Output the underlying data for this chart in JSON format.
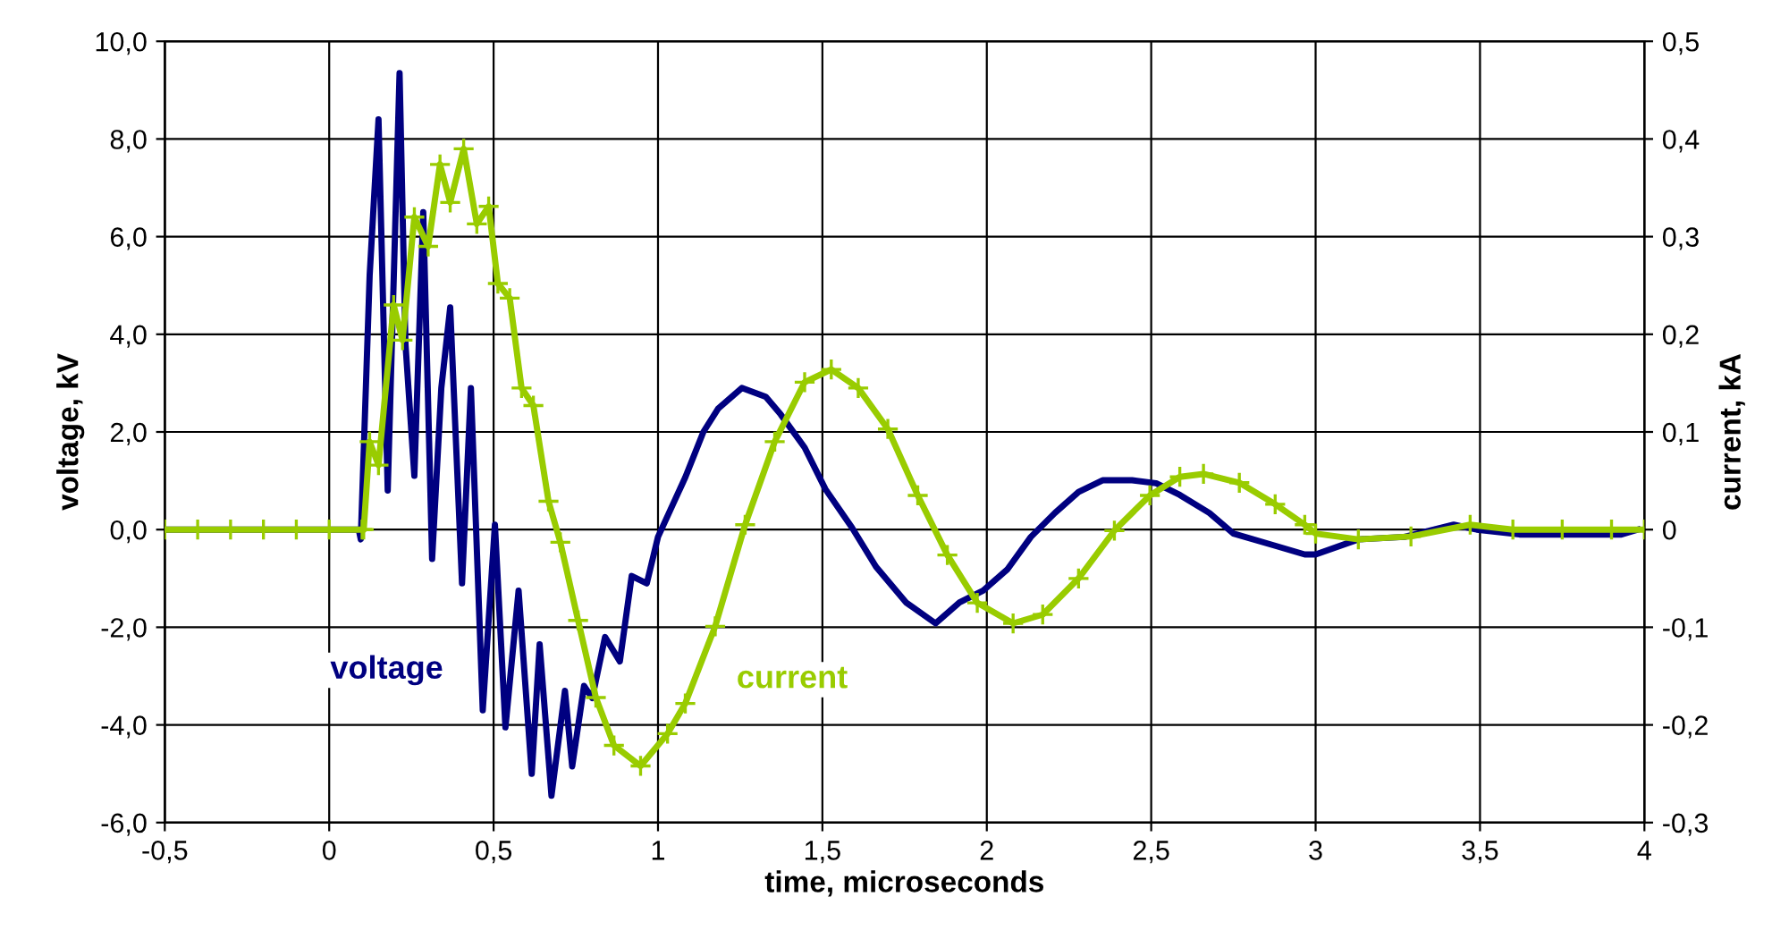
{
  "chart_data": {
    "type": "line",
    "xlabel": "time, microseconds",
    "ylabel": "voltage, kV",
    "y2label": "current, kA",
    "xlim": [
      -0.5,
      4
    ],
    "ylim": [
      -6,
      10
    ],
    "y2lim": [
      -0.3,
      0.5
    ],
    "xticks": [
      {
        "value": -0.5,
        "label": "-0,5"
      },
      0,
      {
        "value": 0.5,
        "label": "0,5"
      },
      1,
      {
        "value": 1.5,
        "label": "1,5"
      },
      2,
      {
        "value": 2.5,
        "label": "2,5"
      },
      3,
      {
        "value": 3.5,
        "label": "3,5"
      },
      4
    ],
    "yticks": [
      {
        "value": -6,
        "label": "-6,0"
      },
      {
        "value": -4,
        "label": "-4,0"
      },
      {
        "value": -2,
        "label": "-2,0"
      },
      {
        "value": 0,
        "label": "0,0"
      },
      {
        "value": 2,
        "label": "2,0"
      },
      {
        "value": 4,
        "label": "4,0"
      },
      {
        "value": 6,
        "label": "6,0"
      },
      {
        "value": 8,
        "label": "8,0"
      },
      {
        "value": 10,
        "label": "10,0"
      }
    ],
    "y2ticks": [
      {
        "value": -0.3,
        "label": "-0,3"
      },
      {
        "value": -0.2,
        "label": "-0,2"
      },
      {
        "value": -0.1,
        "label": "-0,1"
      },
      0,
      {
        "value": 0.1,
        "label": "0,1"
      },
      {
        "value": 0.2,
        "label": "0,2"
      },
      {
        "value": 0.3,
        "label": "0,3"
      },
      {
        "value": 0.4,
        "label": "0,4"
      },
      {
        "value": 0.5,
        "label": "0,5"
      }
    ],
    "grid": true,
    "legend": false,
    "series": [
      {
        "name": "voltage",
        "color": "#000080",
        "marker": "none",
        "x": [
          -0.5,
          0.09,
          0.096,
          0.123,
          0.15,
          0.178,
          0.214,
          0.232,
          0.259,
          0.286,
          0.313,
          0.341,
          0.368,
          0.404,
          0.431,
          0.467,
          0.504,
          0.536,
          0.576,
          0.616,
          0.64,
          0.676,
          0.717,
          0.739,
          0.775,
          0.8,
          0.839,
          0.884,
          0.92,
          0.966,
          1.0,
          1.083,
          1.138,
          1.183,
          1.255,
          1.328,
          1.373,
          1.446,
          1.509,
          1.59,
          1.663,
          1.754,
          1.844,
          1.917,
          1.989,
          2.062,
          2.134,
          2.207,
          2.279,
          2.352,
          2.442,
          2.515,
          2.587,
          2.677,
          2.75,
          2.877,
          2.967,
          3.0,
          3.13,
          3.27,
          3.42,
          3.49,
          3.62,
          3.93,
          3.98
        ],
        "values": [
          0,
          0,
          -0.2,
          5.2,
          8.4,
          0.8,
          9.35,
          3.8,
          1.1,
          6.5,
          -0.6,
          2.9,
          4.55,
          -1.1,
          2.9,
          -3.7,
          0.1,
          -4.05,
          -1.25,
          -5.0,
          -2.35,
          -5.45,
          -3.3,
          -4.85,
          -3.2,
          -3.45,
          -2.2,
          -2.7,
          -0.95,
          -1.1,
          -0.15,
          1.07,
          2.0,
          2.48,
          2.9,
          2.72,
          2.36,
          1.68,
          0.83,
          0.04,
          -0.76,
          -1.49,
          -1.92,
          -1.49,
          -1.25,
          -0.82,
          -0.15,
          0.34,
          0.77,
          1.01,
          1.01,
          0.95,
          0.71,
          0.34,
          -0.08,
          -0.33,
          -0.51,
          -0.51,
          -0.2,
          -0.15,
          0.1,
          0,
          -0.1,
          -0.1,
          0
        ]
      },
      {
        "name": "current",
        "color": "#99cc00",
        "marker": "cross",
        "axis": "y2",
        "x": [
          -0.5,
          -0.4,
          -0.3,
          -0.2,
          -0.1,
          0.0,
          0.1,
          0.105,
          0.123,
          0.15,
          0.196,
          0.223,
          0.259,
          0.301,
          0.337,
          0.368,
          0.409,
          0.449,
          0.485,
          0.513,
          0.549,
          0.585,
          0.621,
          0.667,
          0.703,
          0.757,
          0.811,
          0.866,
          0.947,
          1.029,
          1.083,
          1.174,
          1.265,
          1.355,
          1.446,
          1.527,
          1.609,
          1.699,
          1.79,
          1.88,
          1.971,
          2.08,
          2.17,
          2.279,
          2.388,
          2.496,
          2.587,
          2.659,
          2.768,
          2.877,
          2.967,
          3.0,
          3.13,
          3.29,
          3.47,
          3.6,
          3.75,
          3.9,
          4.0
        ],
        "values": [
          0,
          0,
          0,
          0,
          0,
          0,
          0,
          0,
          0.09,
          0.066,
          0.23,
          0.194,
          0.32,
          0.29,
          0.374,
          0.335,
          0.39,
          0.313,
          0.331,
          0.252,
          0.237,
          0.145,
          0.127,
          0.029,
          -0.013,
          -0.093,
          -0.172,
          -0.221,
          -0.242,
          -0.209,
          -0.178,
          -0.099,
          0.005,
          0.09,
          0.151,
          0.164,
          0.145,
          0.103,
          0.035,
          -0.026,
          -0.075,
          -0.096,
          -0.087,
          -0.05,
          -0.001,
          0.035,
          0.054,
          0.057,
          0.048,
          0.026,
          0.005,
          -0.004,
          -0.01,
          -0.007,
          0.005,
          0,
          0,
          0,
          0
        ]
      }
    ]
  }
}
